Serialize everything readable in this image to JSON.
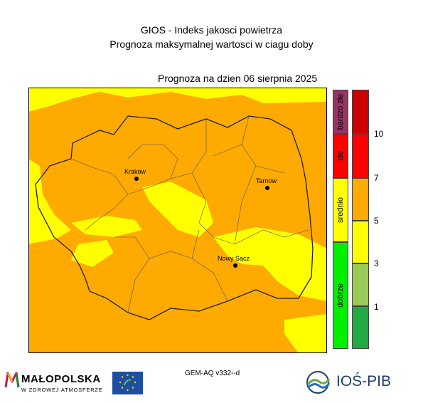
{
  "header": {
    "title_line1": "GIOS - Indeks jakosci powietrza",
    "title_line2": "Prognoza maksymalnej wartosci w ciagu doby",
    "forecast_date_label": "Prognoza na dzien  06 sierpnia 2025"
  },
  "map": {
    "region": "Małopolska",
    "cities": [
      {
        "name": "Krakow"
      },
      {
        "name": "Tarnow"
      },
      {
        "name": "Nowy Sacz"
      }
    ],
    "colors": {
      "orange": "#ffaa00",
      "yellow": "#ffff00"
    }
  },
  "legend": {
    "categories": [
      {
        "label": "bardzo złe",
        "color": "#993366"
      },
      {
        "label": "złe",
        "color": "#ff0000"
      },
      {
        "label": "srednio",
        "color": "#ffff00"
      },
      {
        "label": "dobrze",
        "color": "#00ee00"
      }
    ],
    "colorbar": [
      {
        "color": "#cc0000"
      },
      {
        "color": "#ff0000"
      },
      {
        "color": "#ffaa00"
      },
      {
        "color": "#ffff00"
      },
      {
        "color": "#99cc55"
      },
      {
        "color": "#22aa44"
      }
    ],
    "ticks": [
      "10",
      "7",
      "5",
      "3",
      "1"
    ]
  },
  "footer": {
    "model": "GEM-AQ v332--d",
    "malopolska_logo": "MAŁOPOLSKA",
    "malopolska_sub": "W ZDROWEJ ATMOSFERZE",
    "ios_logo": "IOŚ-PIB"
  }
}
